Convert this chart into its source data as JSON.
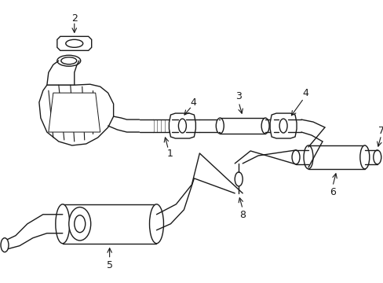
{
  "background_color": "#ffffff",
  "line_color": "#1a1a1a",
  "line_width": 1.0,
  "figsize": [
    4.89,
    3.6
  ],
  "dpi": 100,
  "xlim": [
    0,
    489
  ],
  "ylim": [
    0,
    360
  ]
}
